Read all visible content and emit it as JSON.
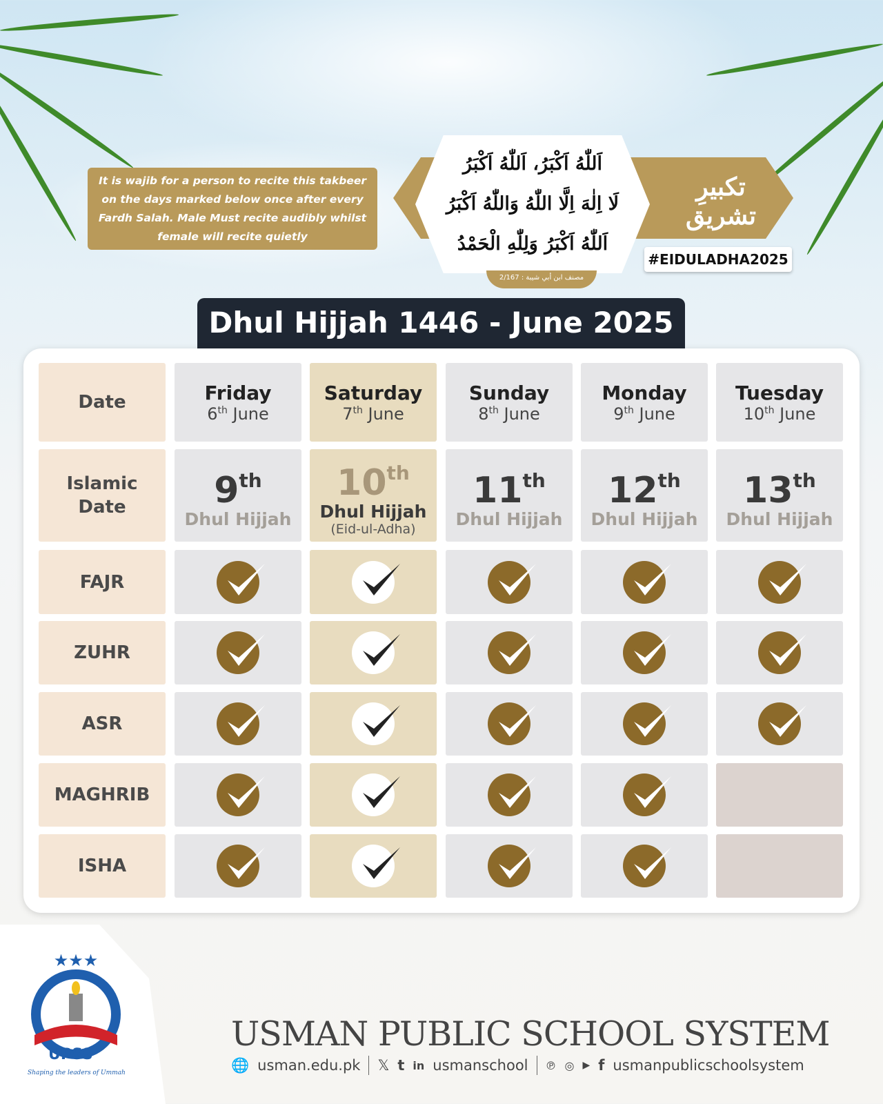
{
  "note": "It is wajib for a person to recite this takbeer on the days marked below once after every Fardh Salah. Male Must recite audibly whilst female will recite quietly",
  "takbeer": {
    "heading": "تکبیرِ تشریق",
    "lines": [
      "اَللّٰهُ اَكْبَرُ، اَللّٰهُ اَكْبَرُ",
      "لَا اِلٰهَ اِلَّا اللّٰهُ وَاللّٰهُ اَكْبَرُ",
      "اَللّٰهُ اَكْبَرُ وَلِلّٰهِ الْحَمْدُ"
    ],
    "source": "مصنف ابن أبي شيبة : 2/167"
  },
  "hashtag": "#EIDULADHA2025",
  "title": "Dhul Hijjah 1446 - June 2025",
  "table": {
    "row_labels": [
      "Date",
      "Islamic Date",
      "FAJR",
      "ZUHR",
      "ASR",
      "MAGHRIB",
      "ISHA"
    ],
    "days": [
      {
        "day": "Friday",
        "num": "6",
        "sup": "th",
        "month": "June",
        "hnum": "9",
        "hsup": "th",
        "hmonth": "Dhul Hijjah",
        "note": "",
        "highlight": false,
        "prayers": [
          true,
          true,
          true,
          true,
          true
        ]
      },
      {
        "day": "Saturday",
        "num": "7",
        "sup": "th",
        "month": "June",
        "hnum": "10",
        "hsup": "th",
        "hmonth": "Dhul Hijjah",
        "note": "(Eid-ul-Adha)",
        "highlight": true,
        "prayers": [
          true,
          true,
          true,
          true,
          true
        ]
      },
      {
        "day": "Sunday",
        "num": "8",
        "sup": "th",
        "month": "June",
        "hnum": "11",
        "hsup": "th",
        "hmonth": "Dhul Hijjah",
        "note": "",
        "highlight": false,
        "prayers": [
          true,
          true,
          true,
          true,
          true
        ]
      },
      {
        "day": "Monday",
        "num": "9",
        "sup": "th",
        "month": "June",
        "hnum": "12",
        "hsup": "th",
        "hmonth": "Dhul Hijjah",
        "note": "",
        "highlight": false,
        "prayers": [
          true,
          true,
          true,
          true,
          true
        ]
      },
      {
        "day": "Tuesday",
        "num": "10",
        "sup": "th",
        "month": "June",
        "hnum": "13",
        "hsup": "th",
        "hmonth": "Dhul Hijjah",
        "note": "",
        "highlight": false,
        "prayers": [
          true,
          true,
          true,
          false,
          false
        ]
      }
    ]
  },
  "footer": {
    "logo_text": "UPSS",
    "logo_ring": "USMAN PUBLIC SCHOOL SYSTEM",
    "logo_tagline": "Shaping the leaders of Ummah",
    "brand": "USMAN PUBLIC SCHOOL SYSTEM",
    "website": "usman.edu.pk",
    "handle1": "usmanschool",
    "handle2": "usmanpublicschoolsystem"
  },
  "colors": {
    "gold": "#b99a5a",
    "check": "#8c6a2a",
    "dark": "#1f2733",
    "label_bg": "#f5e6d6",
    "cell_bg": "#e6e6e8",
    "highlight_bg": "#e8dcbf"
  }
}
